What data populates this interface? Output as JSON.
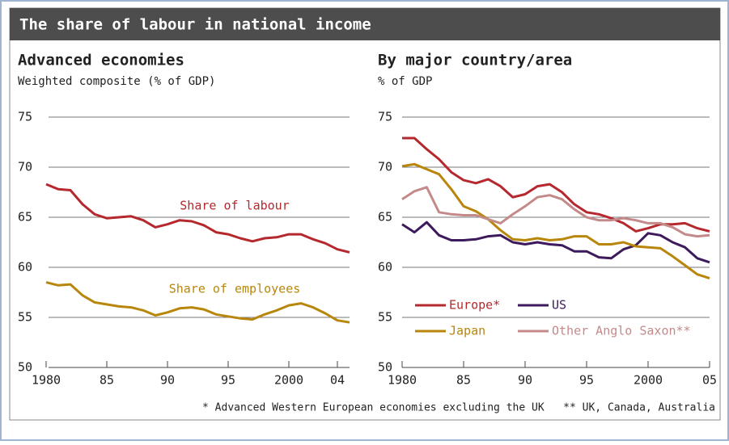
{
  "title": "The share of labour in national income",
  "footnote": "* Advanced Western European economies excluding the UK   ** UK, Canada, Australia",
  "chart_data": [
    {
      "type": "line",
      "title": "Advanced economies",
      "subtitle": "Weighted composite (% of GDP)",
      "x": [
        1980,
        1981,
        1982,
        1983,
        1984,
        1985,
        1986,
        1987,
        1988,
        1989,
        1990,
        1991,
        1992,
        1993,
        1994,
        1995,
        1996,
        1997,
        1998,
        1999,
        2000,
        2001,
        2002,
        2003,
        2004,
        2005
      ],
      "series": [
        {
          "name": "Share of labour",
          "color": "#b5282d",
          "values": [
            68.3,
            67.8,
            67.7,
            66.3,
            65.3,
            64.9,
            65.0,
            65.1,
            64.7,
            64.0,
            64.3,
            64.7,
            64.6,
            64.2,
            63.5,
            63.3,
            62.9,
            62.6,
            62.9,
            63.0,
            63.3,
            63.3,
            62.8,
            62.4,
            61.8,
            61.5
          ]
        },
        {
          "name": "Share of employees",
          "color": "#b8860b",
          "values": [
            58.5,
            58.2,
            58.3,
            57.2,
            56.5,
            56.3,
            56.1,
            56.0,
            55.7,
            55.2,
            55.5,
            55.9,
            56.0,
            55.8,
            55.3,
            55.1,
            54.9,
            54.8,
            55.3,
            55.7,
            56.2,
            56.4,
            56.0,
            55.4,
            54.7,
            54.5
          ]
        }
      ],
      "xlim": [
        1980,
        2005
      ],
      "xticks": [
        1980,
        {
          "value": 1985,
          "label": "85"
        },
        {
          "value": 1990,
          "label": "90"
        },
        {
          "value": 1995,
          "label": "95"
        },
        2000,
        {
          "value": 2004,
          "label": "04"
        }
      ],
      "ylim": [
        50,
        75
      ],
      "yticks": [
        50,
        55,
        60,
        65,
        70,
        75
      ],
      "grid": true
    },
    {
      "type": "line",
      "title": "By major country/area",
      "subtitle": "% of GDP",
      "x": [
        1980,
        1981,
        1982,
        1983,
        1984,
        1985,
        1986,
        1987,
        1988,
        1989,
        1990,
        1991,
        1992,
        1993,
        1994,
        1995,
        1996,
        1997,
        1998,
        1999,
        2000,
        2001,
        2002,
        2003,
        2004,
        2005
      ],
      "series": [
        {
          "name": "Europe*",
          "color": "#b5282d",
          "values": [
            72.9,
            72.9,
            71.8,
            70.8,
            69.5,
            68.7,
            68.4,
            68.8,
            68.1,
            67.0,
            67.3,
            68.1,
            68.3,
            67.5,
            66.3,
            65.5,
            65.3,
            64.9,
            64.4,
            63.6,
            63.9,
            64.3,
            64.3,
            64.4,
            63.9,
            63.6
          ]
        },
        {
          "name": "US",
          "color": "#3d1a5b",
          "values": [
            64.3,
            63.5,
            64.5,
            63.2,
            62.7,
            62.7,
            62.8,
            63.1,
            63.2,
            62.5,
            62.3,
            62.5,
            62.3,
            62.2,
            61.6,
            61.6,
            61.0,
            60.9,
            61.8,
            62.2,
            63.4,
            63.2,
            62.5,
            62.0,
            60.9,
            60.5
          ]
        },
        {
          "name": "Japan",
          "color": "#b8860b",
          "values": [
            70.1,
            70.3,
            69.8,
            69.3,
            67.8,
            66.1,
            65.6,
            64.8,
            63.7,
            62.8,
            62.7,
            62.9,
            62.7,
            62.8,
            63.1,
            63.1,
            62.3,
            62.3,
            62.5,
            62.1,
            62.0,
            61.9,
            61.1,
            60.2,
            59.3,
            58.9
          ]
        },
        {
          "name": "Other Anglo Saxon**",
          "color": "#c48a8a",
          "values": [
            66.8,
            67.6,
            68.0,
            65.5,
            65.3,
            65.2,
            65.2,
            64.8,
            64.4,
            65.3,
            66.1,
            67.0,
            67.2,
            66.8,
            65.8,
            65.0,
            64.7,
            64.7,
            64.9,
            64.7,
            64.4,
            64.4,
            64.0,
            63.3,
            63.1,
            63.2
          ]
        }
      ],
      "xlim": [
        1980,
        2005
      ],
      "xticks": [
        1980,
        {
          "value": 1985,
          "label": "85"
        },
        {
          "value": 1990,
          "label": "90"
        },
        {
          "value": 1995,
          "label": "95"
        },
        2000,
        {
          "value": 2005,
          "label": "05"
        }
      ],
      "ylim": [
        50,
        75
      ],
      "yticks": [
        50,
        55,
        60,
        65,
        70,
        75
      ],
      "grid": true,
      "legend": "lower left"
    }
  ]
}
